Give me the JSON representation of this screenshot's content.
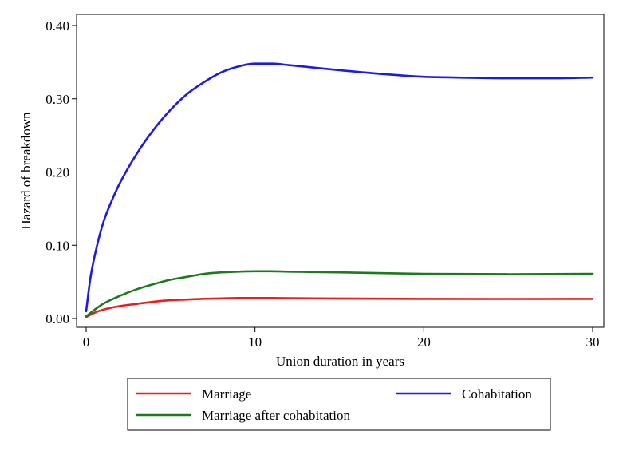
{
  "chart_data": {
    "type": "line",
    "title": "",
    "xlabel": "Union duration in years",
    "ylabel": "Hazard of breakdown",
    "xlim": [
      0,
      30
    ],
    "ylim": [
      0,
      0.4
    ],
    "x_ticks": [
      0,
      10,
      20,
      30
    ],
    "y_ticks": [
      "0.00",
      "0.10",
      "0.20",
      "0.30",
      "0.40"
    ],
    "grid": false,
    "legend_position": "bottom",
    "series": [
      {
        "name": "Marriage",
        "color": "#ee1c1c",
        "x": [
          0,
          0.5,
          1,
          2,
          3,
          4,
          5,
          6,
          7,
          8,
          9,
          10,
          11,
          12,
          15,
          20,
          25,
          30
        ],
        "y": [
          0.002,
          0.008,
          0.012,
          0.017,
          0.02,
          0.023,
          0.025,
          0.026,
          0.027,
          0.0275,
          0.028,
          0.028,
          0.028,
          0.0278,
          0.0273,
          0.0268,
          0.0267,
          0.0268
        ]
      },
      {
        "name": "Cohabitation",
        "color": "#1a1aee",
        "x": [
          0,
          0.25,
          0.5,
          1,
          1.5,
          2,
          3,
          4,
          5,
          6,
          7,
          8,
          9,
          10,
          11,
          12,
          15,
          18,
          20,
          22,
          25,
          28,
          30
        ],
        "y": [
          0.01,
          0.055,
          0.085,
          0.13,
          0.16,
          0.185,
          0.225,
          0.258,
          0.285,
          0.307,
          0.323,
          0.336,
          0.344,
          0.348,
          0.348,
          0.346,
          0.339,
          0.333,
          0.33,
          0.329,
          0.328,
          0.328,
          0.329
        ]
      },
      {
        "name": "Marriage after cohabitation",
        "color": "#1b7a1b",
        "x": [
          0,
          0.5,
          1,
          2,
          3,
          4,
          5,
          6,
          7,
          8,
          9,
          10,
          11,
          12,
          15,
          20,
          25,
          30
        ],
        "y": [
          0.003,
          0.012,
          0.02,
          0.031,
          0.04,
          0.047,
          0.053,
          0.057,
          0.061,
          0.063,
          0.064,
          0.0645,
          0.0645,
          0.064,
          0.063,
          0.061,
          0.0605,
          0.061
        ]
      }
    ]
  }
}
